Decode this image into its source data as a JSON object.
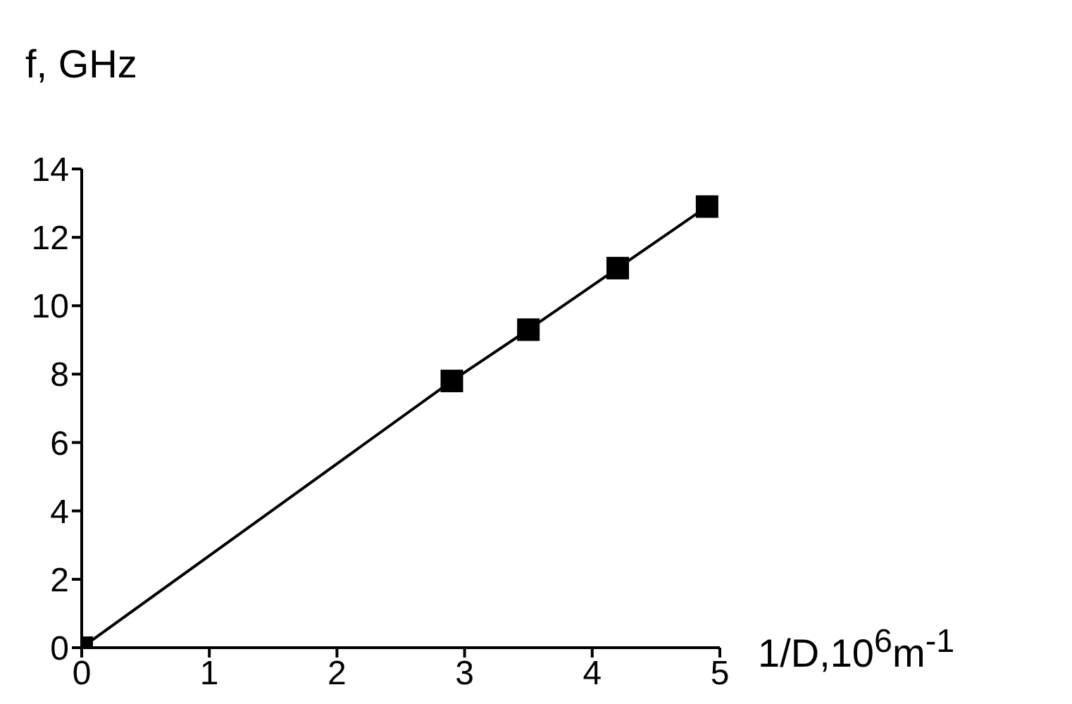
{
  "chart_data": {
    "type": "line",
    "xlabel": "1/D,10$^{6}$m$^{-1}$",
    "ylabel": "f, GHz",
    "x": [
      0,
      2.9,
      3.5,
      4.2,
      4.9
    ],
    "series": [
      {
        "color": "#000000",
        "values": [
          0,
          7.8,
          9.3,
          11.1,
          12.9
        ]
      }
    ],
    "xlim": [
      0,
      5
    ],
    "xticks": [
      0,
      1,
      2,
      3,
      4,
      5
    ],
    "ylim": [
      0,
      14
    ],
    "yticks": [
      0,
      2,
      4,
      6,
      8,
      10,
      12,
      14
    ],
    "grid": false,
    "legend": false,
    "marker": "square",
    "line_style": "solid"
  }
}
